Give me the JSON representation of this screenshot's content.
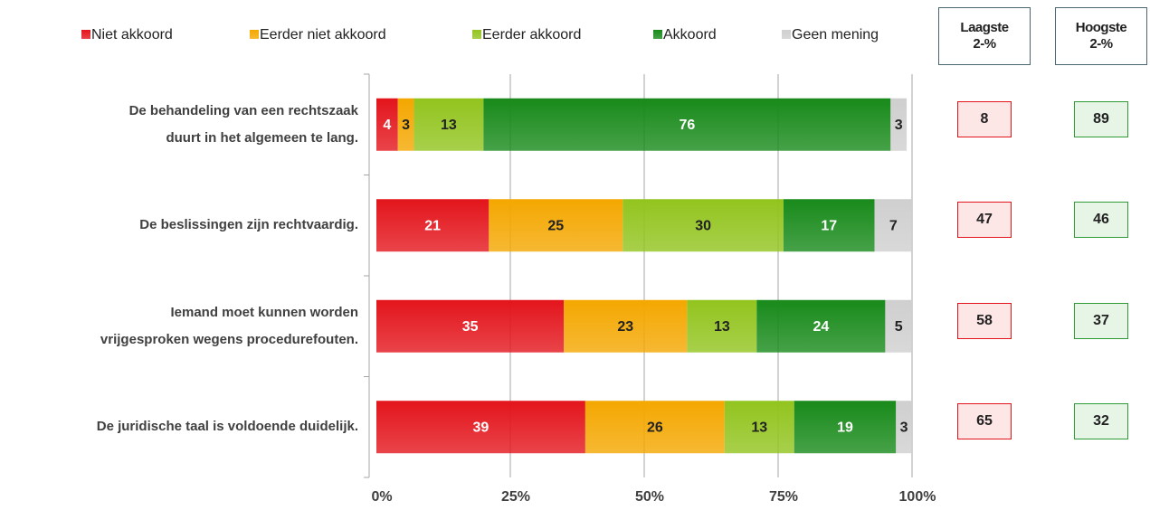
{
  "chart_data": {
    "type": "stacked_barh",
    "categories": [
      "De behandeling van een rechtszaak\nduurt in het algemeen te lang.",
      "De beslissingen zijn rechtvaardig.",
      "Iemand moet kunnen worden\nvrijgesproken wegens procedurefouten.",
      "De juridische taal is voldoende duidelijk."
    ],
    "series": [
      {
        "name": "Niet akkoord",
        "color": "#e3151c",
        "values": [
          4,
          21,
          35,
          39
        ]
      },
      {
        "name": "Eerder niet akkoord",
        "color": "#f4a700",
        "values": [
          3,
          25,
          23,
          26
        ]
      },
      {
        "name": "Eerder akkoord",
        "color": "#92c41e",
        "values": [
          13,
          30,
          13,
          13
        ]
      },
      {
        "name": "Akkoord",
        "color": "#188a1a",
        "values": [
          76,
          17,
          24,
          19
        ]
      },
      {
        "name": "Geen mening",
        "color": "#cfcfcf",
        "values": [
          3,
          7,
          5,
          3
        ]
      }
    ],
    "xlim": [
      0,
      100
    ],
    "xticks": [
      {
        "value": 0,
        "label": "0%"
      },
      {
        "value": 25,
        "label": "25%"
      },
      {
        "value": 50,
        "label": "50%"
      },
      {
        "value": 75,
        "label": "75%"
      },
      {
        "value": 100,
        "label": "100%"
      }
    ],
    "grid": true,
    "legend": "top",
    "summary": [
      {
        "name": "Laagste 2-%",
        "color": "#e3151c",
        "fill": "#fde6e6",
        "values": [
          8,
          47,
          58,
          65
        ]
      },
      {
        "name": "Hoogste 2-%",
        "color": "#2e9b34",
        "fill": "#e6f5e6",
        "values": [
          89,
          46,
          37,
          32
        ]
      }
    ]
  }
}
